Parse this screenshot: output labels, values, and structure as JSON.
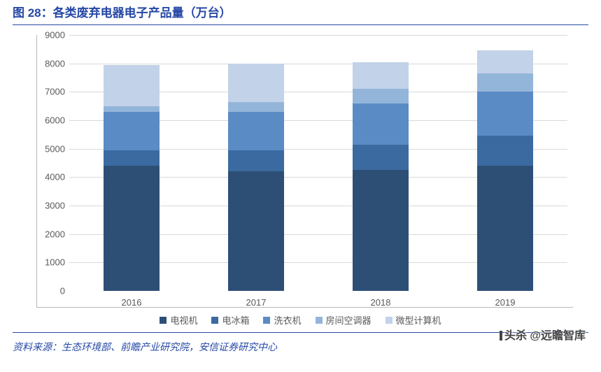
{
  "title": "图 28：各类废弃电器电子产品量（万台）",
  "source": "资料来源：生态环境部、前瞻产业研究院，安信证券研究中心",
  "watermark": "头杀 @远瞻智库",
  "chart": {
    "type": "stacked-bar",
    "y_axis": {
      "min": 0,
      "max": 9000,
      "step": 1000,
      "ticks": [
        0,
        1000,
        2000,
        3000,
        4000,
        5000,
        6000,
        7000,
        8000,
        9000
      ]
    },
    "x_labels": [
      "2016",
      "2017",
      "2018",
      "2019"
    ],
    "series": [
      {
        "name": "电视机",
        "color": "#2d4f76"
      },
      {
        "name": "电冰箱",
        "color": "#3b6aa0"
      },
      {
        "name": "洗衣机",
        "color": "#5a8bc4"
      },
      {
        "name": "房间空调器",
        "color": "#94b5da"
      },
      {
        "name": "微型计算机",
        "color": "#c2d2e8"
      }
    ],
    "data": [
      [
        4400,
        550,
        1350,
        200,
        1450
      ],
      [
        4200,
        750,
        1350,
        350,
        1350
      ],
      [
        4250,
        900,
        1450,
        500,
        950
      ],
      [
        4400,
        1050,
        1550,
        650,
        800
      ]
    ],
    "bar_width_ratio": 0.45,
    "grid_color": "#d9d9d9",
    "axis_color": "#b8b8b8",
    "background": "#ffffff",
    "tick_fontsize": 13,
    "tick_color": "#595959"
  }
}
